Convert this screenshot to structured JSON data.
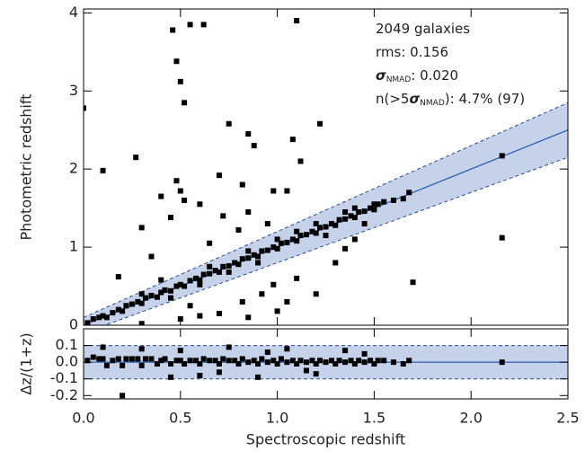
{
  "chart_data": [
    {
      "type": "scatter",
      "ylabel": "Photometric redshift",
      "annotations": [
        [
          "2049 galaxies"
        ],
        [
          "rms: 0.156"
        ],
        [
          "σ",
          "NMAD",
          ": 0.020"
        ],
        [
          "n(>5",
          "σ",
          "NMAD",
          "): 4.7% (97)"
        ]
      ],
      "xlim": [
        0,
        2.5
      ],
      "xticks": [
        0,
        0.5,
        1,
        1.5,
        2,
        2.5
      ],
      "ylim": [
        0,
        4.05
      ],
      "yticks": [
        0,
        1,
        2,
        3,
        4
      ],
      "band_halfwidth": 0.1,
      "band_color": "#c6d1ea",
      "line_color": "#2a5cb0",
      "color": "#000000",
      "x": [
        0.02,
        0.05,
        0.08,
        0.1,
        0.12,
        0.15,
        0.18,
        0.2,
        0.22,
        0.25,
        0.28,
        0.3,
        0.32,
        0.35,
        0.38,
        0.4,
        0.42,
        0.45,
        0.48,
        0.5,
        0.52,
        0.55,
        0.58,
        0.6,
        0.62,
        0.65,
        0.68,
        0.7,
        0.72,
        0.75,
        0.78,
        0.8,
        0.82,
        0.85,
        0.88,
        0.9,
        0.92,
        0.95,
        0.98,
        1.0,
        1.02,
        1.05,
        1.08,
        1.1,
        1.12,
        1.15,
        1.18,
        1.2,
        1.22,
        1.25,
        1.28,
        1.3,
        1.32,
        1.35,
        1.38,
        1.4,
        1.42,
        1.45,
        1.48,
        1.5,
        1.52,
        1.55,
        1.6,
        1.65,
        1.68,
        1.45,
        1.5,
        1.35,
        1.2,
        1.0,
        0.9,
        0.75,
        0.6,
        0.45,
        0.3,
        0.65,
        0.85,
        1.1,
        1.25,
        1.4,
        0.46,
        0.55,
        0.62,
        1.1,
        0.48,
        0.5,
        0.52,
        0.0,
        0.75,
        1.22,
        0.85,
        0.88,
        1.08,
        1.12,
        0.27,
        0.1,
        0.7,
        0.48,
        0.82,
        0.5,
        0.98,
        1.05,
        0.4,
        0.52,
        0.6,
        0.85,
        0.72,
        0.45,
        0.3,
        0.95,
        2.16,
        2.16,
        1.7,
        0.18,
        0.4,
        0.35,
        1.2,
        1.1,
        0.98,
        1.3,
        1.35,
        0.7,
        0.85,
        1.0,
        0.5,
        0.6,
        0.3,
        1.4,
        0.92,
        1.05,
        0.82,
        0.55,
        0.65,
        0.8
      ],
      "values": [
        0.03,
        0.08,
        0.1,
        0.12,
        0.1,
        0.16,
        0.2,
        0.18,
        0.25,
        0.27,
        0.3,
        0.28,
        0.35,
        0.38,
        0.36,
        0.42,
        0.45,
        0.44,
        0.5,
        0.52,
        0.5,
        0.57,
        0.6,
        0.58,
        0.65,
        0.66,
        0.7,
        0.68,
        0.75,
        0.76,
        0.8,
        0.78,
        0.85,
        0.86,
        0.9,
        0.88,
        0.95,
        0.96,
        1.0,
        0.98,
        1.05,
        1.06,
        1.1,
        1.08,
        1.15,
        1.16,
        1.2,
        1.18,
        1.25,
        1.26,
        1.3,
        1.28,
        1.35,
        1.36,
        1.4,
        1.38,
        1.45,
        1.46,
        1.5,
        1.48,
        1.55,
        1.58,
        1.6,
        1.62,
        1.7,
        1.3,
        1.55,
        1.45,
        1.3,
        1.1,
        0.8,
        0.68,
        0.52,
        0.35,
        0.4,
        0.75,
        0.95,
        1.2,
        1.15,
        1.5,
        3.78,
        3.85,
        3.85,
        3.9,
        3.38,
        3.12,
        2.85,
        2.78,
        2.58,
        2.58,
        2.45,
        2.3,
        2.38,
        2.1,
        2.15,
        1.98,
        1.92,
        1.85,
        1.8,
        1.72,
        1.72,
        1.72,
        1.65,
        1.6,
        1.55,
        1.45,
        1.4,
        1.38,
        1.25,
        1.3,
        2.17,
        1.12,
        0.55,
        0.62,
        0.58,
        0.88,
        0.4,
        0.6,
        0.52,
        0.8,
        0.98,
        0.15,
        0.1,
        0.18,
        0.08,
        0.12,
        0.02,
        1.1,
        0.4,
        0.3,
        0.3,
        0.25,
        1.05,
        1.22
      ]
    },
    {
      "type": "scatter",
      "ylabel": "Δz/(1+z)",
      "xlabel": "Spectroscopic redshift",
      "xlim": [
        0,
        2.5
      ],
      "xticks": [
        {
          "value": 0,
          "label": "0.0"
        },
        0.5,
        {
          "value": 1,
          "label": "1.0"
        },
        1.5,
        {
          "value": 2,
          "label": "2.0"
        },
        2.5
      ],
      "ylim": [
        -0.22,
        0.2
      ],
      "yticks": [
        0.1,
        {
          "value": 0,
          "label": "0.0"
        },
        -0.1,
        -0.2
      ],
      "band_halfwidth": 0.1,
      "band_color": "#c6d1ea",
      "line_color": "#2a5cb0",
      "color": "#000000",
      "x": [
        0.02,
        0.05,
        0.08,
        0.1,
        0.12,
        0.15,
        0.18,
        0.2,
        0.22,
        0.25,
        0.28,
        0.3,
        0.32,
        0.35,
        0.38,
        0.4,
        0.42,
        0.45,
        0.48,
        0.5,
        0.52,
        0.55,
        0.58,
        0.6,
        0.62,
        0.65,
        0.68,
        0.7,
        0.72,
        0.75,
        0.78,
        0.8,
        0.82,
        0.85,
        0.88,
        0.9,
        0.92,
        0.95,
        0.98,
        1.0,
        1.02,
        1.05,
        1.08,
        1.1,
        1.12,
        1.15,
        1.18,
        1.2,
        1.22,
        1.25,
        1.28,
        1.3,
        1.32,
        1.35,
        1.38,
        1.4,
        1.42,
        1.45,
        1.48,
        1.5,
        1.52,
        1.55,
        1.6,
        1.65,
        1.68,
        2.16,
        0.1,
        0.3,
        0.45,
        0.6,
        0.75,
        0.9,
        1.05,
        1.2,
        1.35,
        0.2,
        0.5,
        0.7,
        0.95,
        1.15,
        1.45
      ],
      "values": [
        0.01,
        0.03,
        0.02,
        0.02,
        -0.02,
        0.01,
        0.02,
        -0.02,
        0.02,
        0.02,
        0.02,
        -0.02,
        0.02,
        0.02,
        -0.01,
        0.01,
        0.02,
        -0.01,
        0.01,
        0.01,
        -0.01,
        0.01,
        0.01,
        -0.01,
        0.02,
        0.01,
        0.01,
        -0.01,
        0.02,
        0.01,
        0.01,
        -0.01,
        0.02,
        0.0,
        0.01,
        -0.01,
        0.02,
        0.0,
        0.01,
        -0.01,
        0.02,
        0.0,
        0.01,
        -0.01,
        0.01,
        0.0,
        0.01,
        -0.01,
        0.01,
        0.0,
        0.01,
        -0.01,
        0.01,
        0.0,
        0.01,
        -0.01,
        0.01,
        0.0,
        0.01,
        -0.01,
        0.01,
        0.01,
        0.0,
        -0.01,
        0.01,
        0.0,
        0.09,
        0.08,
        -0.09,
        -0.08,
        0.09,
        -0.09,
        0.08,
        -0.07,
        0.07,
        -0.2,
        0.07,
        -0.06,
        0.06,
        -0.05,
        0.05
      ]
    }
  ]
}
